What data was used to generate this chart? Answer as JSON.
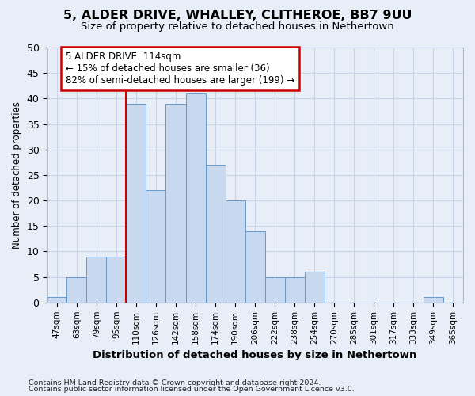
{
  "title_line1": "5, ALDER DRIVE, WHALLEY, CLITHEROE, BB7 9UU",
  "title_line2": "Size of property relative to detached houses in Nethertown",
  "xlabel": "Distribution of detached houses by size in Nethertown",
  "ylabel": "Number of detached properties",
  "bin_labels": [
    "47sqm",
    "63sqm",
    "79sqm",
    "95sqm",
    "110sqm",
    "126sqm",
    "142sqm",
    "158sqm",
    "174sqm",
    "190sqm",
    "206sqm",
    "222sqm",
    "238sqm",
    "254sqm",
    "270sqm",
    "285sqm",
    "301sqm",
    "317sqm",
    "333sqm",
    "349sqm",
    "365sqm"
  ],
  "bar_values": [
    1,
    5,
    9,
    9,
    39,
    22,
    39,
    41,
    27,
    20,
    14,
    5,
    5,
    6,
    0,
    0,
    0,
    0,
    0,
    1,
    0
  ],
  "bar_color": "#c8d8ee",
  "bar_edgecolor": "#6699cc",
  "red_line_x": 4.0,
  "annotation_text": "5 ALDER DRIVE: 114sqm\n← 15% of detached houses are smaller (36)\n82% of semi-detached houses are larger (199) →",
  "annotation_box_color": "white",
  "annotation_box_edgecolor": "#cc0000",
  "ylim": [
    0,
    50
  ],
  "yticks": [
    0,
    5,
    10,
    15,
    20,
    25,
    30,
    35,
    40,
    45,
    50
  ],
  "grid_color": "#c8d4e8",
  "background_color": "#e8eef8",
  "footnote1": "Contains HM Land Registry data © Crown copyright and database right 2024.",
  "footnote2": "Contains public sector information licensed under the Open Government Licence v3.0."
}
